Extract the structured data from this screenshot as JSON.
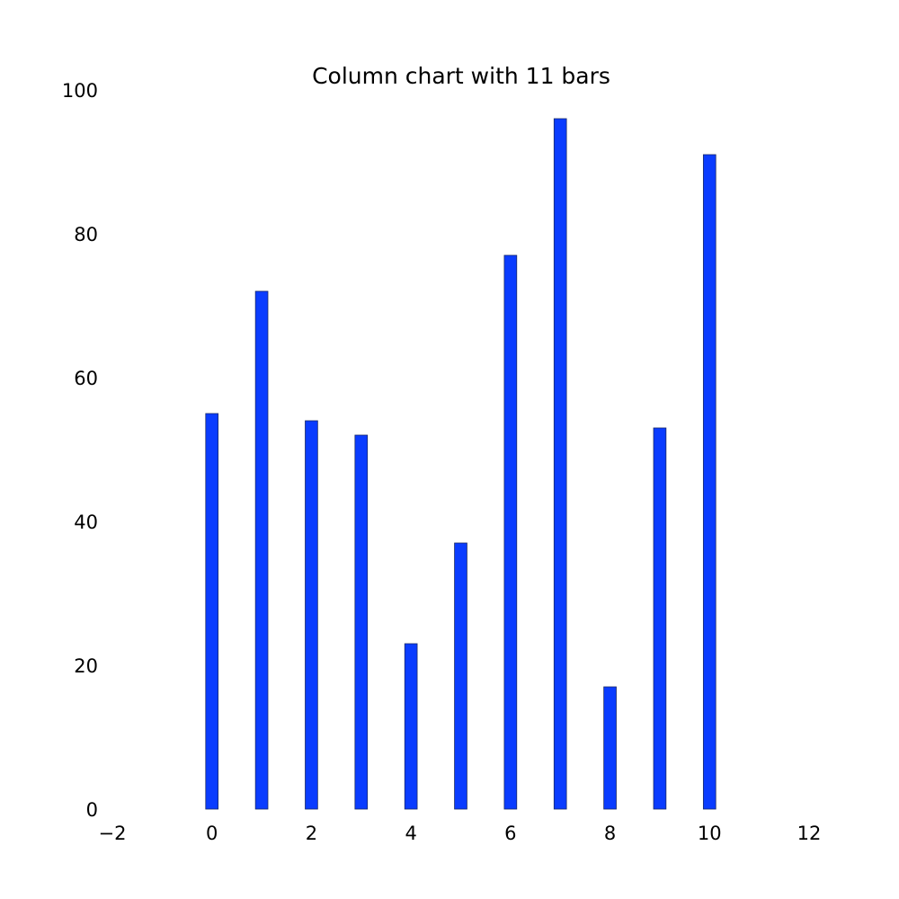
{
  "chart_data": {
    "type": "bar",
    "title": "Column chart with 11 bars",
    "xlabel": "",
    "ylabel": "",
    "x": [
      0,
      1,
      2,
      3,
      4,
      5,
      6,
      7,
      8,
      9,
      10
    ],
    "values": [
      55,
      72,
      54,
      52,
      23,
      37,
      77,
      96,
      17,
      53,
      91
    ],
    "xlim": [
      -2,
      12
    ],
    "ylim": [
      0,
      100
    ],
    "xticks": [
      "−2",
      "0",
      "2",
      "4",
      "6",
      "8",
      "10",
      "12"
    ],
    "xtick_values": [
      -2,
      0,
      2,
      4,
      6,
      8,
      10,
      12
    ],
    "yticks": [
      "0",
      "20",
      "40",
      "60",
      "80",
      "100"
    ],
    "ytick_values": [
      0,
      20,
      40,
      60,
      80,
      100
    ],
    "grid": false,
    "legend": "none",
    "bar_color": "#0a3cff"
  }
}
